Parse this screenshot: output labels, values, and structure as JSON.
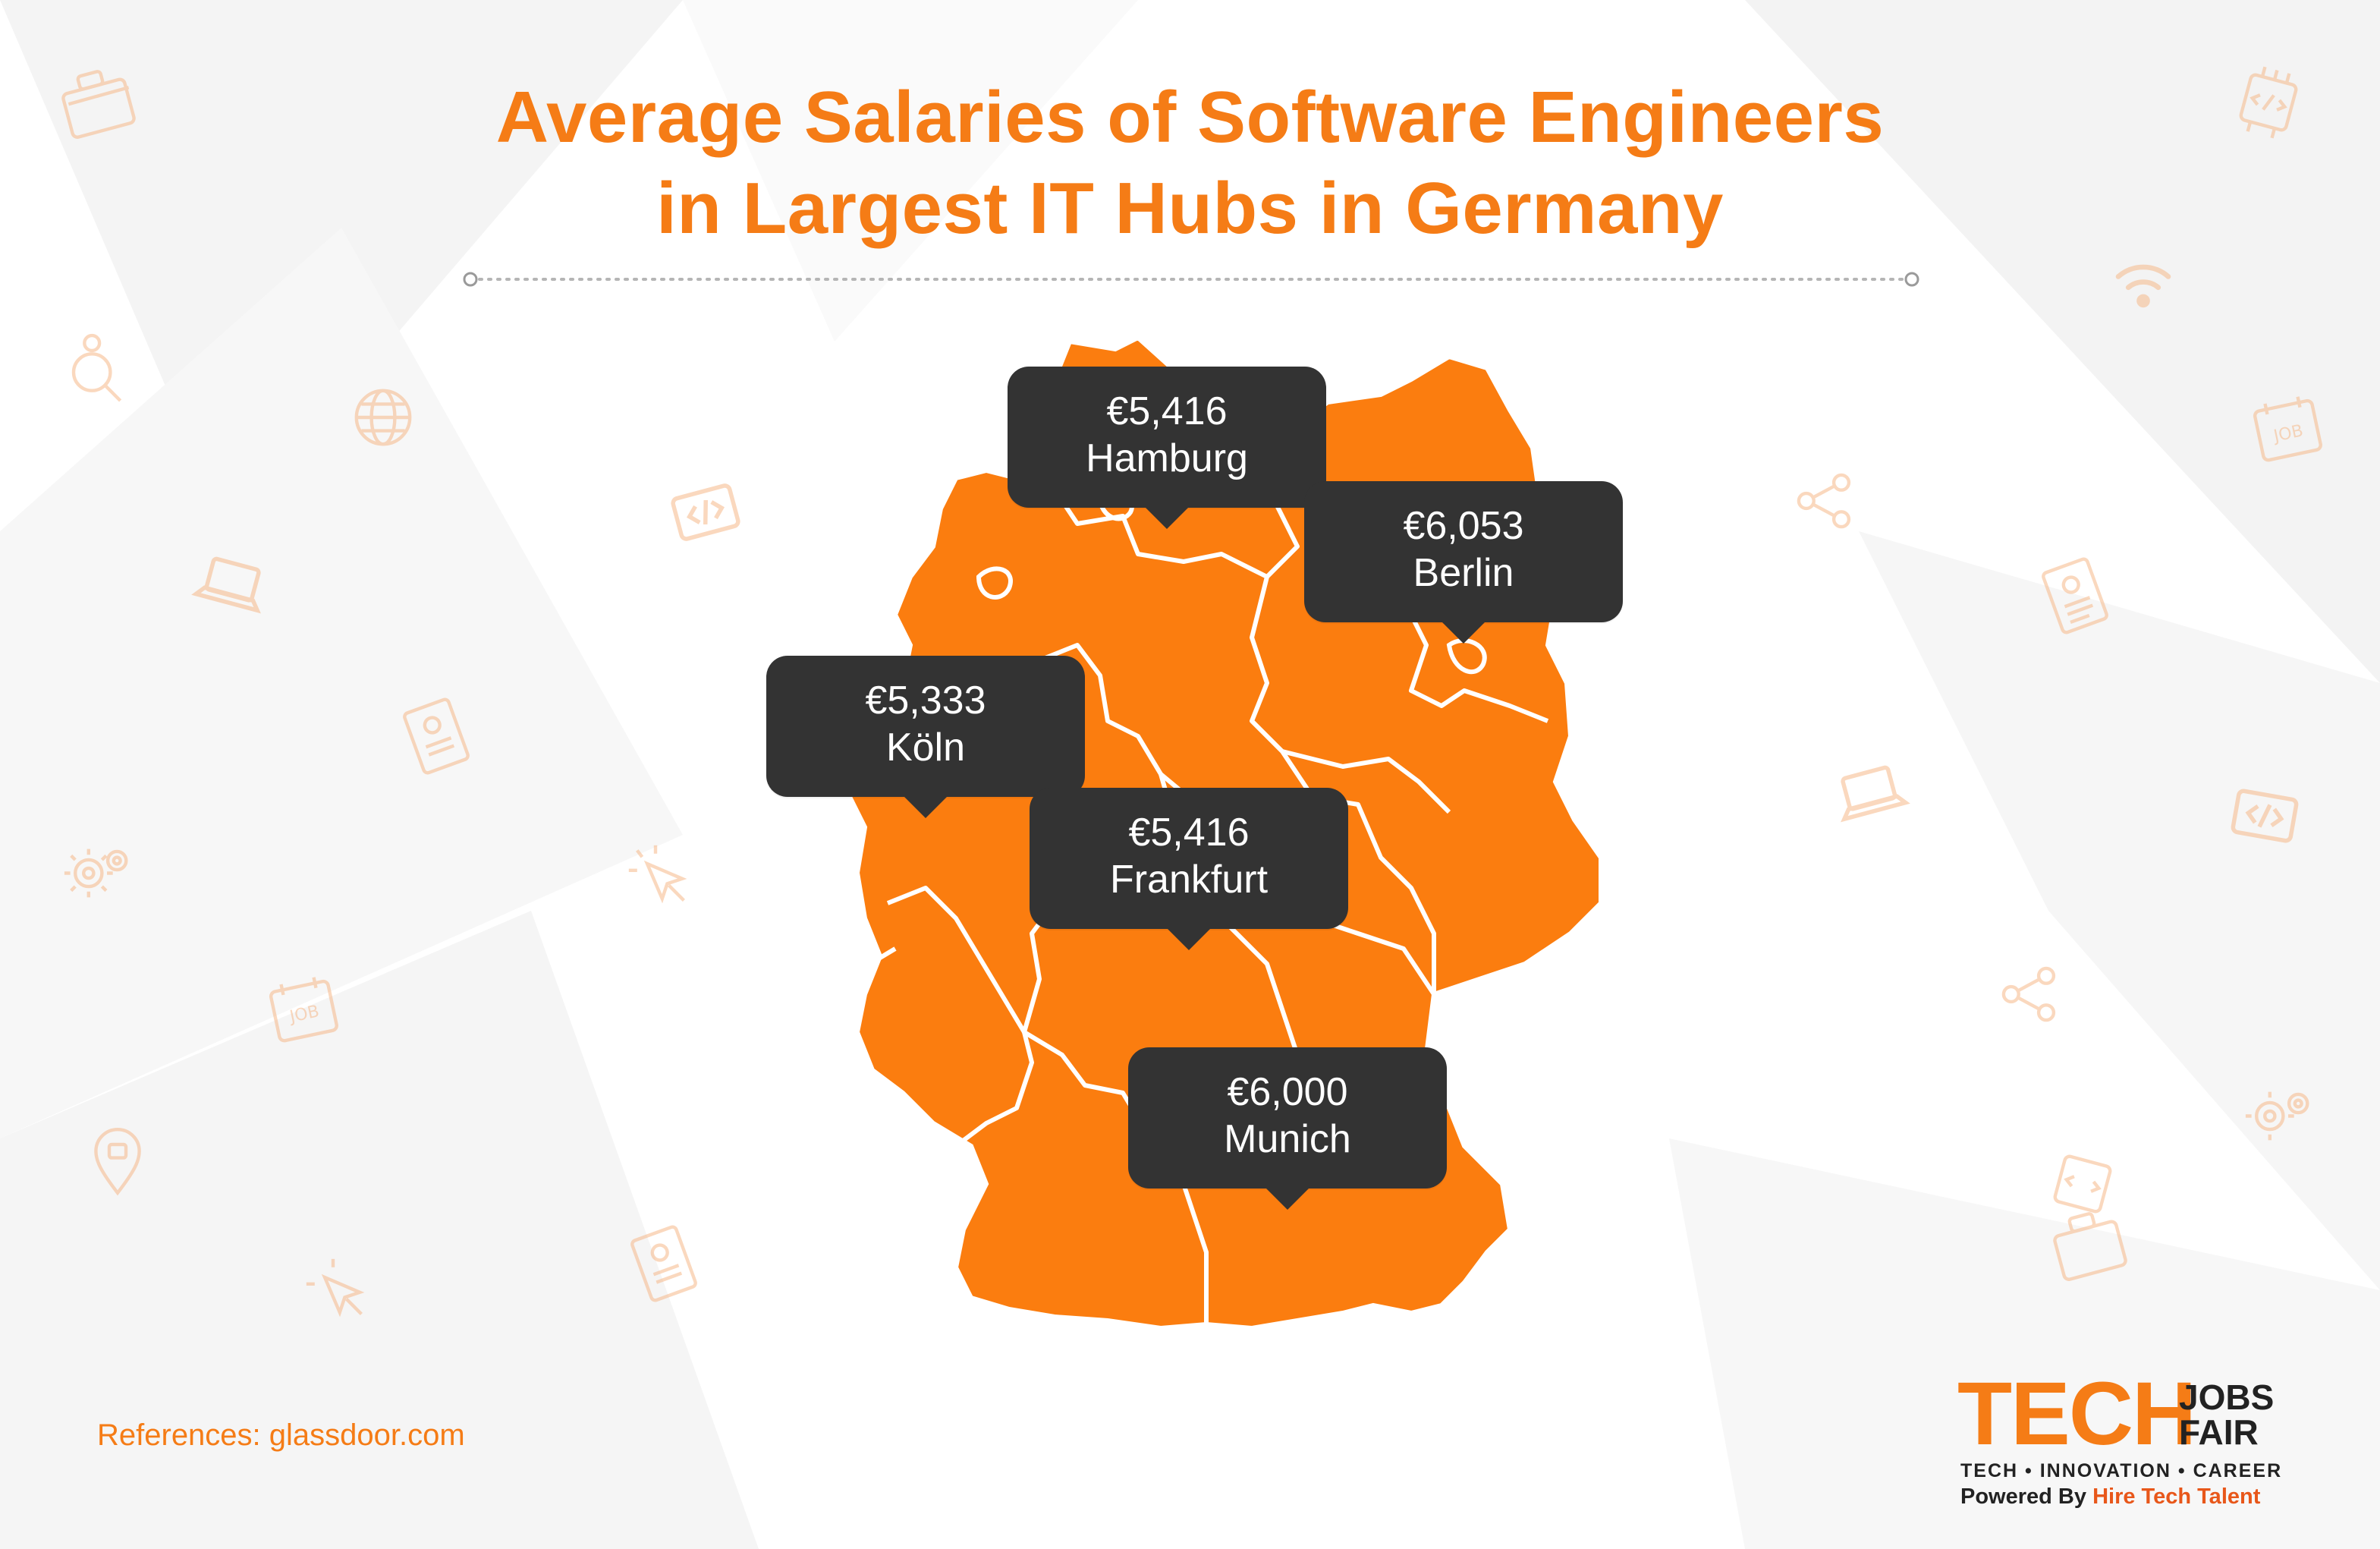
{
  "title": {
    "line1": "Average Salaries of Software Engineers",
    "line2": "in Largest IT Hubs in Germany"
  },
  "cities": [
    {
      "id": "hamburg",
      "amount": "€5,416",
      "city": "Hamburg"
    },
    {
      "id": "berlin",
      "amount": "€6,053",
      "city": "Berlin"
    },
    {
      "id": "koeln",
      "amount": "€5,333",
      "city": "Köln"
    },
    {
      "id": "frankfurt",
      "amount": "€5,416",
      "city": "Frankfurt"
    },
    {
      "id": "munich",
      "amount": "€6,000",
      "city": "Munich"
    }
  ],
  "references": "References: glassdoor.com",
  "brand": {
    "tech": "TECH",
    "jobs": "JOBS",
    "fair": "FAIR",
    "tagline": "TECH • INNOVATION • CAREER",
    "powered_prefix": "Powered By",
    "powered_name": "Hire Tech Talent"
  },
  "colors": {
    "accent": "#f57c16",
    "map_fill": "#fb7d0f",
    "callout_bg": "#333333",
    "text_dark": "#222222"
  },
  "decor_icons": [
    "briefcase-icon",
    "code-chip-icon",
    "wifi-icon",
    "search-person-icon",
    "globe-icon",
    "job-card-icon",
    "code-tag-icon",
    "share-icon",
    "laptop-icon",
    "resume-icon",
    "gear-icon",
    "cursor-icon",
    "location-pin-icon"
  ]
}
